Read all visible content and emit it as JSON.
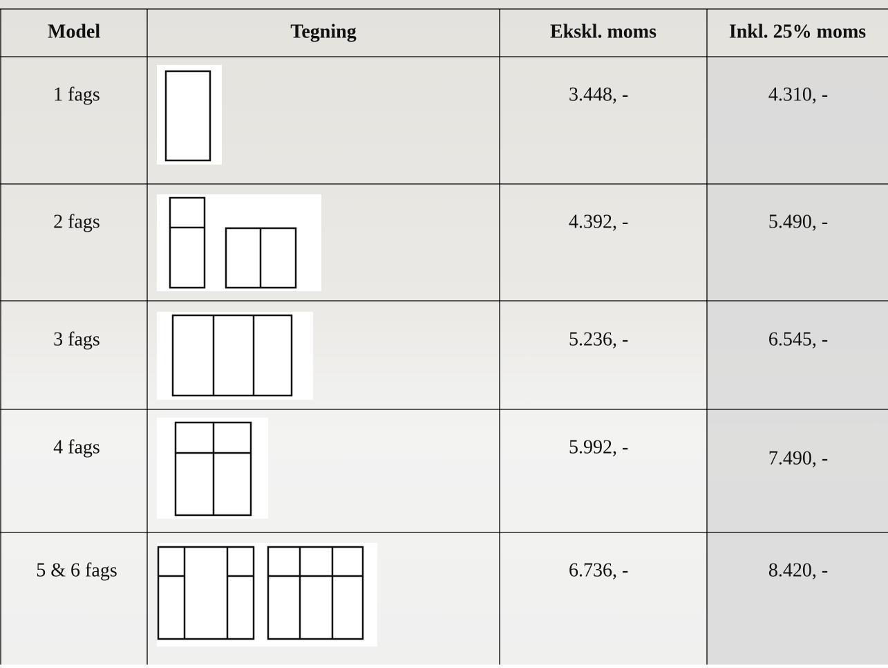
{
  "table": {
    "headers": [
      "Model",
      "Tegning",
      "Ekskl. moms",
      "Inkl. 25% moms"
    ],
    "rows": [
      [
        "1 fags",
        "3.448, -",
        "4.310, -"
      ],
      [
        "2 fags",
        "4.392, -",
        "5.490, -"
      ],
      [
        "3 fags",
        "5.236, -",
        "6.545, -"
      ],
      [
        "4 fags",
        "5.992, -",
        "7.490, -"
      ],
      [
        "5 & 6 fags",
        "6.736, -",
        "8.420, -"
      ]
    ]
  }
}
